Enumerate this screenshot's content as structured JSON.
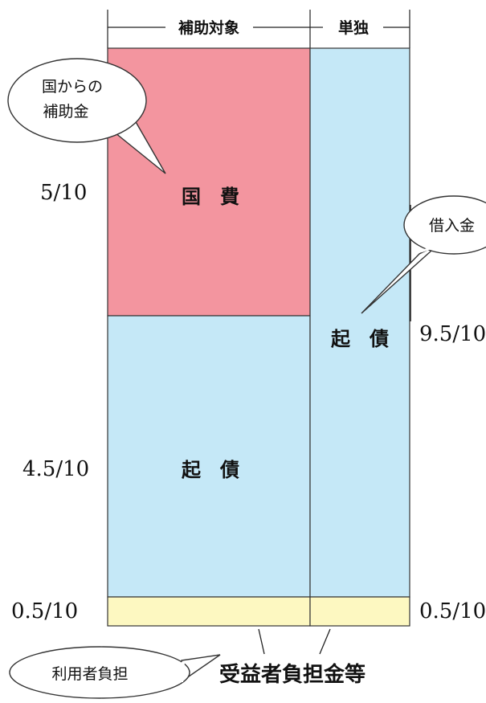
{
  "header": {
    "left_label": "補助対象",
    "right_label": "単独"
  },
  "blocks": {
    "national": {
      "label": "国　費",
      "color": "#f3959f"
    },
    "bond_left": {
      "label": "起　債",
      "color": "#c5e8f7"
    },
    "bond_right": {
      "label": "起　債",
      "color": "#c5e8f7"
    },
    "beneficiary_left": {
      "color": "#fdf8c1"
    },
    "beneficiary_right": {
      "color": "#fdf8c1"
    }
  },
  "ratios": {
    "national": "5/10",
    "bond_left": "4.5/10",
    "beneficiary_left": "0.5/10",
    "bond_right": "9.5/10",
    "beneficiary_right": "0.5/10"
  },
  "callouts": {
    "subsidy_line1": "国からの",
    "subsidy_line2": "補助金",
    "loan": "借入金",
    "user_burden": "利用者負担",
    "beneficiary": "受益者負担金等"
  }
}
